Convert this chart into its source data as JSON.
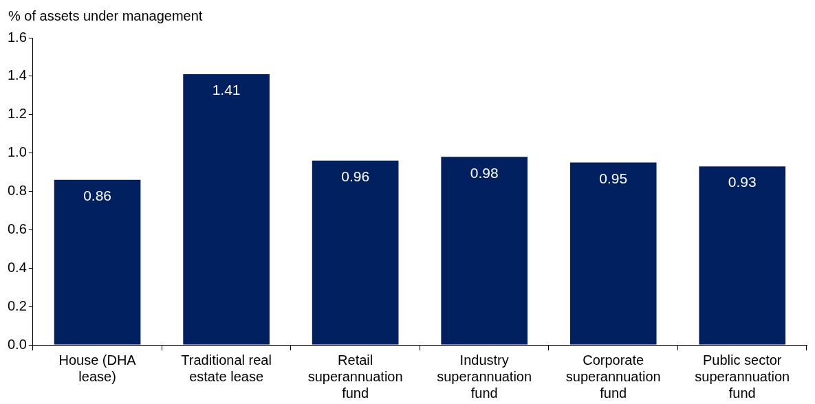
{
  "chart_data": {
    "type": "bar",
    "ylabel": "% of assets under management",
    "categories": [
      "House (DHA lease)",
      "Traditional real estate lease",
      "Retail superannuation fund",
      "Industry superannuation fund",
      "Corporate superannuation fund",
      "Public sector superannuation fund"
    ],
    "values": [
      0.86,
      1.41,
      0.96,
      0.98,
      0.95,
      0.93
    ],
    "color": "#002060",
    "ylim": [
      0,
      1.6
    ],
    "yticks": [
      {
        "value": 0,
        "label": "0.0"
      },
      {
        "value": 0.2,
        "label": "0.2"
      },
      {
        "value": 0.4,
        "label": "0.4"
      },
      {
        "value": 0.6,
        "label": "0.6"
      },
      {
        "value": 0.8,
        "label": "0.8"
      },
      {
        "value": 1,
        "label": "1.0"
      },
      {
        "value": 1.2,
        "label": "1.2"
      },
      {
        "value": 1.4,
        "label": "1.4"
      },
      {
        "value": 1.6,
        "label": "1.6"
      }
    ],
    "grid": false,
    "legend": false,
    "data_labels": true
  }
}
